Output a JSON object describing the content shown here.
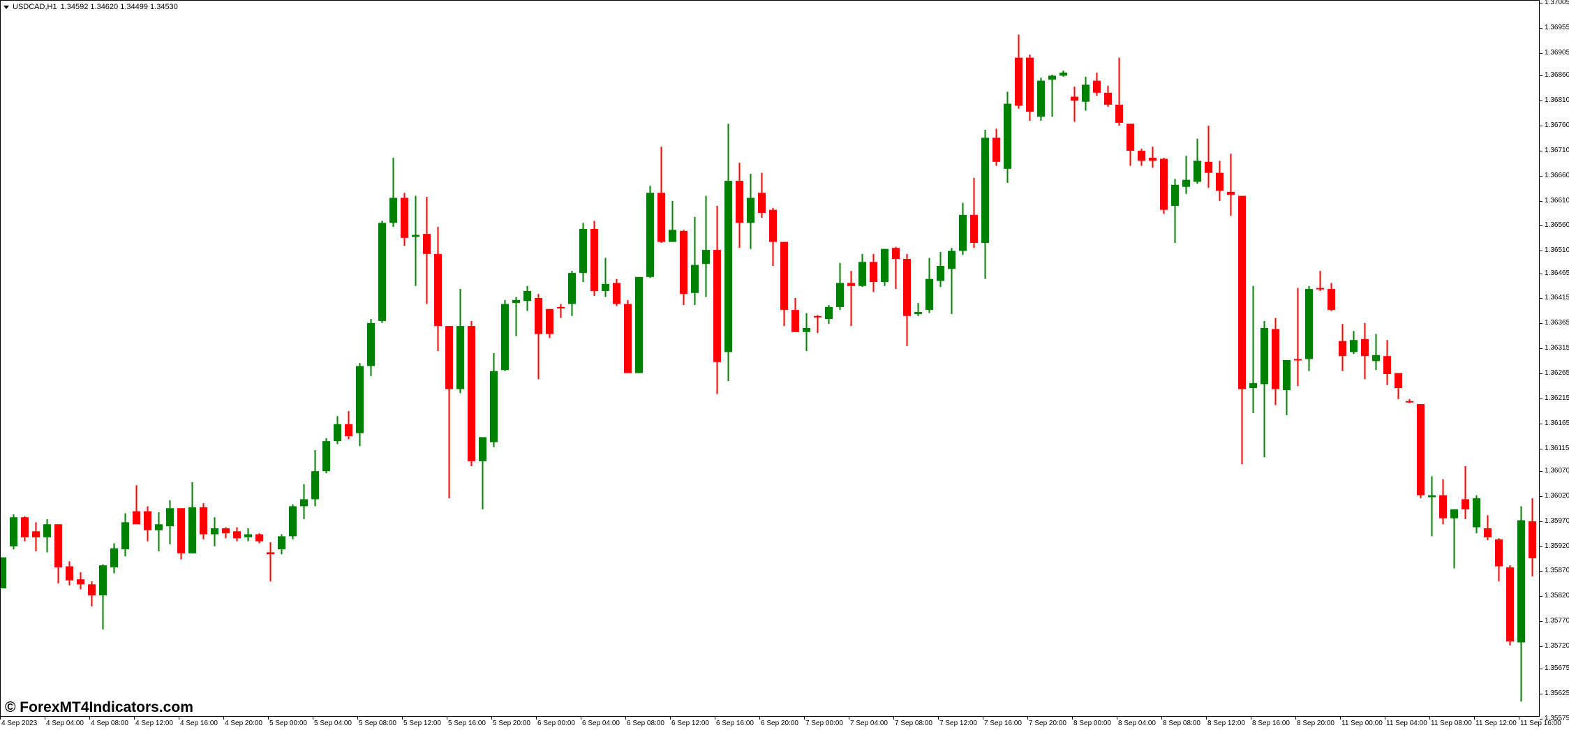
{
  "header": {
    "symbol": "USDCAD,H1",
    "ohlc": "1.34592 1.34620 1.34499 1.34530",
    "menu_icon": "triangle-down-icon"
  },
  "watermark": "© ForexMT4Indicators.com",
  "chart_data": {
    "type": "candlestick",
    "symbol": "USDCAD",
    "timeframe": "H1",
    "colors": {
      "bull": "#008000",
      "bear": "#ff0000",
      "background": "#ffffff",
      "axis": "#000000"
    },
    "ylim": [
      1.35558,
      1.37011
    ],
    "grid": false,
    "price_ticks": [
      "1.37005",
      "1.36955",
      "1.36905",
      "1.36860",
      "1.36810",
      "1.36760",
      "1.36710",
      "1.36660",
      "1.36610",
      "1.36560",
      "1.36510",
      "1.36465",
      "1.36415",
      "1.36365",
      "1.36315",
      "1.36265",
      "1.36215",
      "1.36165",
      "1.36115",
      "1.36070",
      "1.36020",
      "1.35970",
      "1.35920",
      "1.35870",
      "1.35820",
      "1.35770",
      "1.35720",
      "1.35675",
      "1.35625",
      "1.35575"
    ],
    "time_labels": [
      "4 Sep 2023",
      "4 Sep 04:00",
      "4 Sep 08:00",
      "4 Sep 12:00",
      "4 Sep 16:00",
      "4 Sep 20:00",
      "5 Sep 00:00",
      "5 Sep 04:00",
      "5 Sep 08:00",
      "5 Sep 12:00",
      "5 Sep 16:00",
      "5 Sep 20:00",
      "6 Sep 00:00",
      "6 Sep 04:00",
      "6 Sep 08:00",
      "6 Sep 12:00",
      "6 Sep 16:00",
      "6 Sep 20:00",
      "7 Sep 00:00",
      "7 Sep 04:00",
      "7 Sep 08:00",
      "7 Sep 12:00",
      "7 Sep 16:00",
      "7 Sep 20:00",
      "8 Sep 00:00",
      "8 Sep 04:00",
      "8 Sep 08:00",
      "8 Sep 12:00",
      "8 Sep 16:00",
      "8 Sep 20:00",
      "11 Sep 00:00",
      "11 Sep 04:00",
      "11 Sep 08:00",
      "11 Sep 12:00",
      "11 Sep 16:00"
    ],
    "ohlc_fields": [
      "open",
      "high",
      "low",
      "close"
    ],
    "candles": [
      [
        1.35837,
        1.35899,
        1.35837,
        1.35899
      ],
      [
        1.35921,
        1.35985,
        1.35915,
        1.35979
      ],
      [
        1.35979,
        1.35981,
        1.35931,
        1.35939
      ],
      [
        1.35951,
        1.35969,
        1.35911,
        1.35939
      ],
      [
        1.35939,
        1.35975,
        1.35909,
        1.35965
      ],
      [
        1.35965,
        1.35965,
        1.35847,
        1.35879
      ],
      [
        1.35881,
        1.35891,
        1.35843,
        1.35853
      ],
      [
        1.35855,
        1.35869,
        1.35835,
        1.35845
      ],
      [
        1.35845,
        1.35851,
        1.35801,
        1.35823
      ],
      [
        1.35823,
        1.35885,
        1.35755,
        1.35883
      ],
      [
        1.35879,
        1.35927,
        1.35867,
        1.35917
      ],
      [
        1.35915,
        1.35987,
        1.35901,
        1.35969
      ],
      [
        1.35991,
        1.36043,
        1.35965,
        1.35965
      ],
      [
        1.35991,
        1.36001,
        1.35931,
        1.35953
      ],
      [
        1.35953,
        1.35989,
        1.35911,
        1.35965
      ],
      [
        1.35961,
        1.36013,
        1.35925,
        1.35997
      ],
      [
        1.35997,
        1.35997,
        1.35895,
        1.35907
      ],
      [
        1.35907,
        1.36049,
        1.35907,
        1.35999
      ],
      [
        1.35999,
        1.36007,
        1.35935,
        1.35945
      ],
      [
        1.35945,
        1.35979,
        1.35921,
        1.35957
      ],
      [
        1.35957,
        1.35959,
        1.35937,
        1.35947
      ],
      [
        1.35951,
        1.35959,
        1.35931,
        1.35937
      ],
      [
        1.35939,
        1.35957,
        1.35931,
        1.35945
      ],
      [
        1.35945,
        1.35947,
        1.35927,
        1.35931
      ],
      [
        1.35909,
        1.35929,
        1.35851,
        1.35905
      ],
      [
        1.35915,
        1.35945,
        1.35905,
        1.35941
      ],
      [
        1.35941,
        1.36005,
        1.35935,
        1.36001
      ],
      [
        1.36001,
        1.36045,
        1.35975,
        1.36015
      ],
      [
        1.36015,
        1.36113,
        1.36001,
        1.36071
      ],
      [
        1.36071,
        1.36137,
        1.36067,
        1.36131
      ],
      [
        1.36131,
        1.36181,
        1.36125,
        1.36165
      ],
      [
        1.36165,
        1.36191,
        1.36135,
        1.36141
      ],
      [
        1.36147,
        1.36287,
        1.36121,
        1.36281
      ],
      [
        1.36281,
        1.36375,
        1.36261,
        1.36367
      ],
      [
        1.36371,
        1.36571,
        1.36367,
        1.36567
      ],
      [
        1.36567,
        1.36697,
        1.36559,
        1.36617
      ],
      [
        1.36617,
        1.36627,
        1.36521,
        1.36537
      ],
      [
        1.36539,
        1.36621,
        1.36441,
        1.36543
      ],
      [
        1.36545,
        1.36619,
        1.36405,
        1.36505
      ],
      [
        1.36505,
        1.36559,
        1.36311,
        1.36361
      ],
      [
        1.36361,
        1.36361,
        1.36017,
        1.36235
      ],
      [
        1.36235,
        1.36435,
        1.36227,
        1.36361
      ],
      [
        1.36361,
        1.36371,
        1.36081,
        1.36091
      ],
      [
        1.36091,
        1.36139,
        1.35995,
        1.36139
      ],
      [
        1.36129,
        1.36307,
        1.36119,
        1.36271
      ],
      [
        1.36273,
        1.36413,
        1.36271,
        1.36405
      ],
      [
        1.36407,
        1.36419,
        1.36341,
        1.36413
      ],
      [
        1.36411,
        1.36441,
        1.36391,
        1.36431
      ],
      [
        1.36417,
        1.36425,
        1.36255,
        1.36345
      ],
      [
        1.36395,
        1.36395,
        1.36337,
        1.36345
      ],
      [
        1.36399,
        1.36405,
        1.36377,
        1.36397
      ],
      [
        1.36405,
        1.36471,
        1.36381,
        1.36467
      ],
      [
        1.36467,
        1.36567,
        1.36449,
        1.36555
      ],
      [
        1.36555,
        1.36571,
        1.36421,
        1.36431
      ],
      [
        1.36431,
        1.36497,
        1.36419,
        1.36445
      ],
      [
        1.36447,
        1.36455,
        1.36401,
        1.36405
      ],
      [
        1.36405,
        1.36413,
        1.36267,
        1.36267
      ],
      [
        1.36267,
        1.36459,
        1.36267,
        1.36459
      ],
      [
        1.36459,
        1.36641,
        1.36457,
        1.36627
      ],
      [
        1.36627,
        1.36719,
        1.36527,
        1.36529
      ],
      [
        1.36529,
        1.36611,
        1.36529,
        1.36553
      ],
      [
        1.36551,
        1.36553,
        1.36403,
        1.36425
      ],
      [
        1.36427,
        1.36579,
        1.36403,
        1.36483
      ],
      [
        1.36485,
        1.36621,
        1.36419,
        1.36513
      ],
      [
        1.36513,
        1.36601,
        1.36225,
        1.36289
      ],
      [
        1.36309,
        1.36765,
        1.36251,
        1.36651
      ],
      [
        1.36651,
        1.36687,
        1.36517,
        1.36567
      ],
      [
        1.36567,
        1.36665,
        1.36515,
        1.36617
      ],
      [
        1.36627,
        1.36667,
        1.36577,
        1.36587
      ],
      [
        1.36593,
        1.36597,
        1.36481,
        1.36529
      ],
      [
        1.36529,
        1.36529,
        1.36361,
        1.36393
      ],
      [
        1.36393,
        1.36417,
        1.36349,
        1.36349
      ],
      [
        1.36349,
        1.36387,
        1.36311,
        1.36357
      ],
      [
        1.36381,
        1.36383,
        1.36347,
        1.36379
      ],
      [
        1.36375,
        1.36403,
        1.36365,
        1.36399
      ],
      [
        1.36399,
        1.36487,
        1.36393,
        1.36447
      ],
      [
        1.36447,
        1.36471,
        1.36361,
        1.36441
      ],
      [
        1.36441,
        1.36505,
        1.36439,
        1.36489
      ],
      [
        1.36489,
        1.36505,
        1.36429,
        1.36449
      ],
      [
        1.36449,
        1.36515,
        1.36441,
        1.36515
      ],
      [
        1.36517,
        1.36519,
        1.36435,
        1.36495
      ],
      [
        1.36495,
        1.36505,
        1.36321,
        1.36381
      ],
      [
        1.36385,
        1.36407,
        1.36381,
        1.36389
      ],
      [
        1.36393,
        1.36497,
        1.36387,
        1.36455
      ],
      [
        1.36451,
        1.36509,
        1.36439,
        1.36481
      ],
      [
        1.36475,
        1.36517,
        1.36385,
        1.36511
      ],
      [
        1.36511,
        1.36607,
        1.36503,
        1.36583
      ],
      [
        1.36583,
        1.36657,
        1.36517,
        1.36527
      ],
      [
        1.36527,
        1.36753,
        1.36455,
        1.36737
      ],
      [
        1.36737,
        1.36755,
        1.36681,
        1.36689
      ],
      [
        1.36675,
        1.36829,
        1.36647,
        1.36805
      ],
      [
        1.36897,
        1.36943,
        1.36795,
        1.36801
      ],
      [
        1.36897,
        1.36903,
        1.36771,
        1.36789
      ],
      [
        1.36779,
        1.36857,
        1.36771,
        1.36851
      ],
      [
        1.36853,
        1.36863,
        1.36779,
        1.36861
      ],
      [
        1.36861,
        1.36871,
        1.36859,
        1.36867
      ],
      [
        1.36819,
        1.36839,
        1.36769,
        1.36811
      ],
      [
        1.36809,
        1.36859,
        1.36791,
        1.36843
      ],
      [
        1.36851,
        1.36867,
        1.36821,
        1.36827
      ],
      [
        1.36827,
        1.36841,
        1.36799,
        1.36803
      ],
      [
        1.36803,
        1.36897,
        1.36761,
        1.36767
      ],
      [
        1.36765,
        1.36765,
        1.36681,
        1.36711
      ],
      [
        1.36711,
        1.36715,
        1.36681,
        1.36691
      ],
      [
        1.36697,
        1.36719,
        1.36677,
        1.36691
      ],
      [
        1.36695,
        1.36697,
        1.36585,
        1.36593
      ],
      [
        1.36601,
        1.36655,
        1.36527,
        1.36643
      ],
      [
        1.36639,
        1.36701,
        1.36625,
        1.36653
      ],
      [
        1.36649,
        1.36735,
        1.36645,
        1.36691
      ],
      [
        1.36689,
        1.36761,
        1.36637,
        1.36667
      ],
      [
        1.36667,
        1.36691,
        1.36611,
        1.36631
      ],
      [
        1.36629,
        1.36705,
        1.36581,
        1.36623
      ],
      [
        1.36621,
        1.36621,
        1.36085,
        1.36235
      ],
      [
        1.36237,
        1.36441,
        1.36187,
        1.36247
      ],
      [
        1.36245,
        1.36371,
        1.36099,
        1.36357
      ],
      [
        1.36355,
        1.36377,
        1.36203,
        1.36235
      ],
      [
        1.36233,
        1.36293,
        1.36183,
        1.36293
      ],
      [
        1.36295,
        1.36437,
        1.36241,
        1.36293
      ],
      [
        1.36295,
        1.36441,
        1.36271,
        1.36435
      ],
      [
        1.36437,
        1.36471,
        1.36431,
        1.36435
      ],
      [
        1.36435,
        1.36447,
        1.36391,
        1.36393
      ],
      [
        1.36331,
        1.36365,
        1.36271,
        1.36301
      ],
      [
        1.36309,
        1.36351,
        1.36305,
        1.36333
      ],
      [
        1.36335,
        1.36367,
        1.36255,
        1.36301
      ],
      [
        1.36291,
        1.36345,
        1.36273,
        1.36303
      ],
      [
        1.36301,
        1.36333,
        1.36243,
        1.36265
      ],
      [
        1.36267,
        1.36267,
        1.36215,
        1.36237
      ],
      [
        1.36211,
        1.36215,
        1.36207,
        1.36209
      ],
      [
        1.36205,
        1.36205,
        1.36017,
        1.36023
      ],
      [
        1.36019,
        1.36061,
        1.35941,
        1.36023
      ],
      [
        1.36023,
        1.36055,
        1.35965,
        1.35977
      ],
      [
        1.35977,
        1.35995,
        1.35877,
        1.35995
      ],
      [
        1.36015,
        1.36081,
        1.35975,
        1.35995
      ],
      [
        1.35959,
        1.36023,
        1.35947,
        1.36017
      ],
      [
        1.35957,
        1.35983,
        1.35933,
        1.35939
      ],
      [
        1.35935,
        1.35937,
        1.35851,
        1.35881
      ],
      [
        1.35879,
        1.35883,
        1.35723,
        1.35731
      ],
      [
        1.35729,
        1.36001,
        1.35611,
        1.35973
      ],
      [
        1.35971,
        1.36017,
        1.35861,
        1.35897
      ]
    ]
  }
}
